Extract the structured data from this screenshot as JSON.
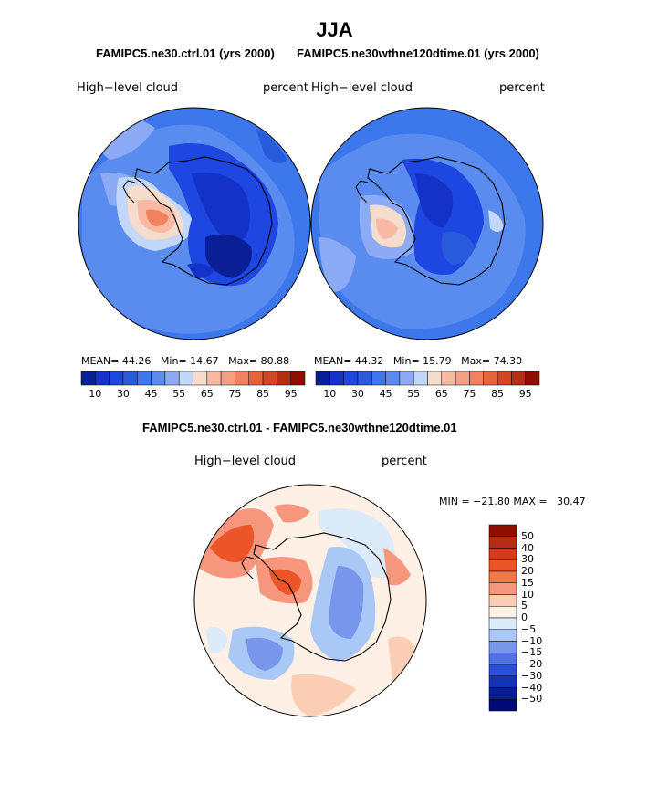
{
  "title": "JJA",
  "panels": [
    {
      "case": "FAMIPC5.ne30.ctrl.01 (yrs 2000)",
      "variable": "High−level cloud",
      "units": "percent",
      "mean_label": "MEAN=",
      "mean": "44.26",
      "min_label": "Min=",
      "min": "14.67",
      "max_label": "Max=",
      "max": "80.88"
    },
    {
      "case": "FAMIPC5.ne30wthne120dtime.01 (yrs 2000)",
      "variable": "High−level cloud",
      "units": "percent",
      "mean_label": "MEAN=",
      "mean": "44.32",
      "min_label": "Min=",
      "min": "15.79",
      "max_label": "Max=",
      "max": "74.30"
    }
  ],
  "diff": {
    "title": "FAMIPC5.ne30.ctrl.01 - FAMIPC5.ne30wthne120dtime.01",
    "variable": "High−level cloud",
    "units": "percent",
    "minmax_label": "MIN = −21.80 MAX =   30.47"
  },
  "chart_data": [
    {
      "type": "heatmap",
      "projection": "south-polar-stereographic",
      "title": "FAMIPC5.ne30.ctrl.01 (yrs 2000)",
      "field": "High-level cloud",
      "units": "percent",
      "stats": {
        "mean": 44.26,
        "min": 14.67,
        "max": 80.88
      },
      "colorbar_ticks": [
        "10",
        "30",
        "45",
        "55",
        "65",
        "75",
        "85",
        "95"
      ],
      "colorbar_colors": [
        "#0a1e96",
        "#1432c8",
        "#1e46e1",
        "#285adc",
        "#3c78eb",
        "#5a8cf0",
        "#8caaf5",
        "#c3d7fa",
        "#f5dccd",
        "#fab9a5",
        "#f5a082",
        "#f0825f",
        "#e6643c",
        "#d24623",
        "#b42d14",
        "#8c0f00"
      ]
    },
    {
      "type": "heatmap",
      "projection": "south-polar-stereographic",
      "title": "FAMIPC5.ne30wthne120dtime.01 (yrs 2000)",
      "field": "High-level cloud",
      "units": "percent",
      "stats": {
        "mean": 44.32,
        "min": 15.79,
        "max": 74.3
      },
      "colorbar_ticks": [
        "10",
        "30",
        "45",
        "55",
        "65",
        "75",
        "85",
        "95"
      ],
      "colorbar_colors": [
        "#0a1e96",
        "#1432c8",
        "#1e46e1",
        "#285adc",
        "#3c78eb",
        "#5a8cf0",
        "#8caaf5",
        "#c3d7fa",
        "#f5dccd",
        "#fab9a5",
        "#f5a082",
        "#f0825f",
        "#e6643c",
        "#d24623",
        "#b42d14",
        "#8c0f00"
      ]
    },
    {
      "type": "heatmap",
      "projection": "south-polar-stereographic",
      "title": "FAMIPC5.ne30.ctrl.01 - FAMIPC5.ne30wthne120dtime.01",
      "field": "High-level cloud difference",
      "units": "percent",
      "stats": {
        "min": -21.8,
        "max": 30.47
      },
      "colorbar_ticks": [
        "50",
        "40",
        "30",
        "20",
        "15",
        "10",
        "5",
        "0",
        "−5",
        "−10",
        "−15",
        "−20",
        "−30",
        "−40",
        "−50"
      ],
      "colorbar_colors": [
        "#8c0f00",
        "#b42d14",
        "#d23c1e",
        "#eb5528",
        "#f0784b",
        "#f5967d",
        "#facdb4",
        "#fff0e6",
        "#dcebfa",
        "#aac8f5",
        "#7896eb",
        "#5073e1",
        "#2850d7",
        "#1432b4",
        "#0a1e96",
        "#000a78"
      ]
    }
  ]
}
